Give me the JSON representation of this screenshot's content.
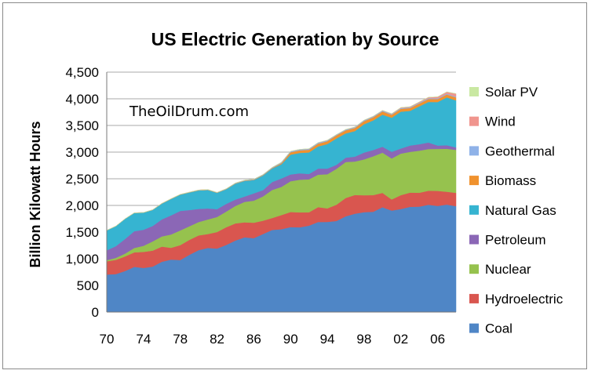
{
  "chart_data": {
    "type": "area",
    "stacked": true,
    "title": "US Electric Generation by Source",
    "xlabel": "",
    "ylabel": "Billion Kilowatt Hours",
    "watermark": "TheOilDrum.com",
    "ylim": [
      0,
      4500
    ],
    "y_ticks": [
      "0",
      "500",
      "1,000",
      "1,500",
      "2,000",
      "2,500",
      "3,000",
      "3,500",
      "4,000",
      "4,500"
    ],
    "x_tick_labels": [
      "70",
      "74",
      "78",
      "82",
      "86",
      "90",
      "94",
      "98",
      "02",
      "06"
    ],
    "x": [
      1970,
      1971,
      1972,
      1973,
      1974,
      1975,
      1976,
      1977,
      1978,
      1979,
      1980,
      1981,
      1982,
      1983,
      1984,
      1985,
      1986,
      1987,
      1988,
      1989,
      1990,
      1991,
      1992,
      1993,
      1994,
      1995,
      1996,
      1997,
      1998,
      1999,
      2000,
      2001,
      2002,
      2003,
      2004,
      2005,
      2006,
      2007,
      2008
    ],
    "grid": true,
    "legend_position": "right",
    "series": [
      {
        "name": "Coal",
        "color": "#4f86c6",
        "values": [
          704,
          713,
          771,
          848,
          828,
          853,
          944,
          985,
          976,
          1075,
          1162,
          1203,
          1192,
          1259,
          1342,
          1402,
          1386,
          1464,
          1541,
          1554,
          1594,
          1590,
          1621,
          1690,
          1691,
          1709,
          1796,
          1845,
          1874,
          1882,
          1966,
          1904,
          1933,
          1974,
          1978,
          2013,
          1991,
          2016,
          1986
        ]
      },
      {
        "name": "Hydroelectric",
        "color": "#d9564f",
        "values": [
          248,
          266,
          273,
          272,
          301,
          300,
          284,
          220,
          280,
          280,
          276,
          261,
          309,
          332,
          321,
          281,
          290,
          250,
          223,
          265,
          283,
          280,
          250,
          278,
          254,
          305,
          344,
          351,
          317,
          312,
          270,
          208,
          260,
          267,
          260,
          263,
          282,
          241,
          250
        ]
      },
      {
        "name": "Nuclear",
        "color": "#96c24e",
        "values": [
          22,
          38,
          54,
          83,
          114,
          173,
          191,
          251,
          276,
          255,
          251,
          273,
          283,
          294,
          328,
          384,
          414,
          455,
          527,
          529,
          577,
          613,
          619,
          610,
          640,
          673,
          675,
          628,
          673,
          728,
          754,
          769,
          780,
          764,
          789,
          782,
          787,
          806,
          806
        ]
      },
      {
        "name": "Petroleum",
        "color": "#8b67b6",
        "values": [
          184,
          220,
          274,
          314,
          301,
          289,
          320,
          358,
          365,
          304,
          246,
          206,
          147,
          144,
          120,
          100,
          137,
          118,
          149,
          158,
          127,
          120,
          100,
          113,
          106,
          75,
          81,
          92,
          128,
          118,
          111,
          125,
          95,
          119,
          121,
          122,
          64,
          66,
          46
        ]
      },
      {
        "name": "Natural Gas",
        "color": "#36b4d1",
        "values": [
          373,
          374,
          376,
          341,
          320,
          300,
          295,
          306,
          305,
          329,
          346,
          346,
          305,
          274,
          297,
          292,
          249,
          273,
          253,
          267,
          372,
          382,
          404,
          415,
          460,
          496,
          455,
          479,
          531,
          556,
          601,
          639,
          691,
          650,
          710,
          761,
          816,
          897,
          883
        ]
      },
      {
        "name": "Biomass",
        "color": "#f0922e",
        "values": [
          2,
          2,
          2,
          2,
          2,
          2,
          2,
          3,
          3,
          3,
          4,
          4,
          4,
          4,
          5,
          6,
          7,
          8,
          9,
          20,
          45,
          48,
          51,
          53,
          54,
          56,
          58,
          58,
          58,
          58,
          61,
          55,
          53,
          53,
          54,
          55,
          55,
          55,
          55
        ]
      },
      {
        "name": "Geothermal",
        "color": "#8fb2e8",
        "values": [
          1,
          1,
          1,
          2,
          2,
          3,
          4,
          4,
          3,
          4,
          5,
          5,
          5,
          6,
          8,
          9,
          10,
          11,
          11,
          15,
          16,
          16,
          16,
          17,
          15,
          13,
          14,
          15,
          15,
          15,
          14,
          14,
          14,
          14,
          15,
          15,
          15,
          15,
          15
        ]
      },
      {
        "name": "Wind",
        "color": "#f0958e",
        "values": [
          0,
          0,
          0,
          0,
          0,
          0,
          0,
          0,
          0,
          0,
          0,
          0,
          0,
          0,
          0,
          0,
          0,
          0,
          1,
          2,
          3,
          3,
          3,
          3,
          4,
          3,
          3,
          4,
          4,
          5,
          6,
          7,
          10,
          11,
          14,
          18,
          27,
          34,
          55
        ]
      },
      {
        "name": "Solar PV",
        "color": "#c9e8a2",
        "values": [
          0,
          0,
          0,
          0,
          0,
          0,
          0,
          0,
          0,
          0,
          0,
          0,
          0,
          0,
          0,
          0,
          0,
          0,
          0,
          0,
          0,
          0,
          0,
          0,
          0,
          0,
          0,
          0,
          0,
          0,
          0,
          0,
          0,
          0,
          0,
          0,
          0,
          0,
          1
        ]
      }
    ]
  }
}
